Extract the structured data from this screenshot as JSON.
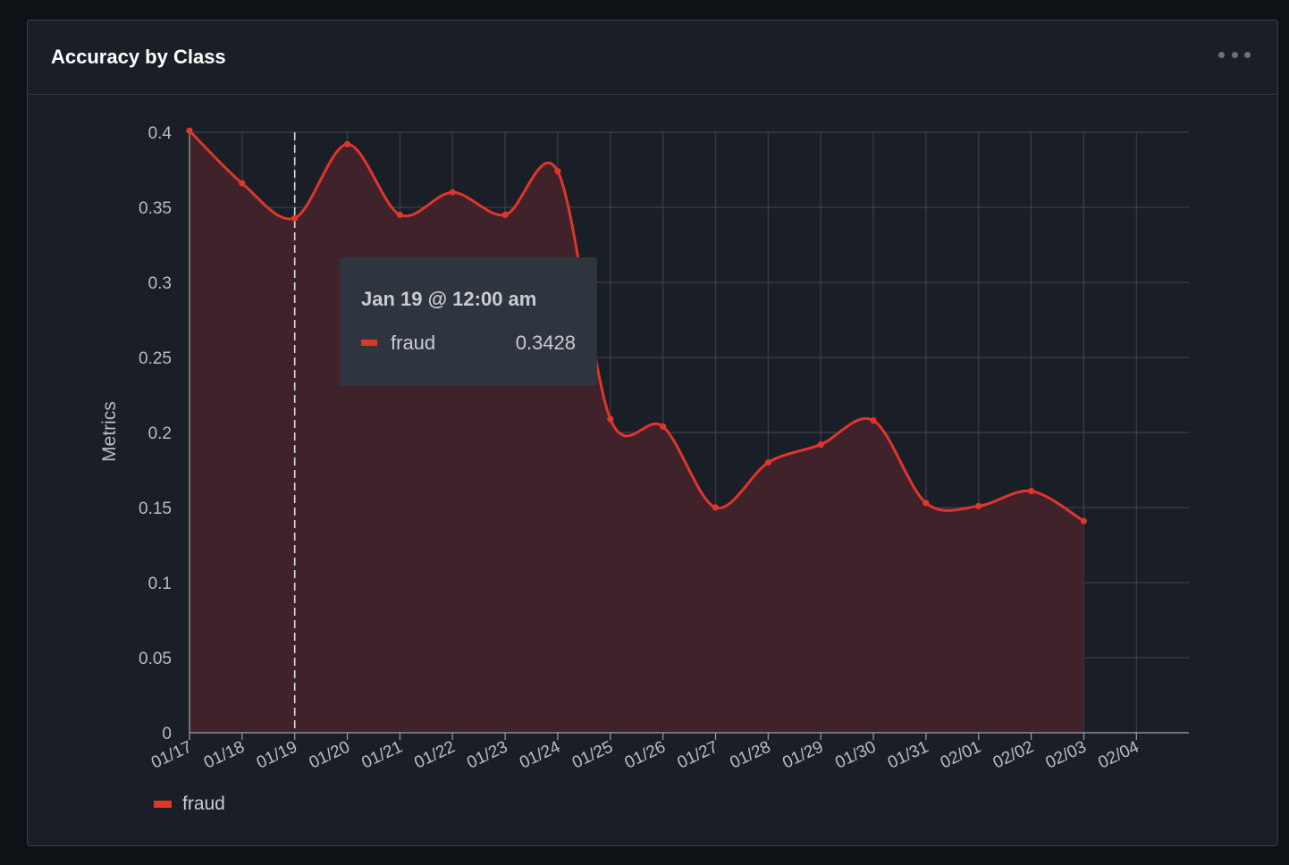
{
  "panel": {
    "title": "Accuracy by Class",
    "menu_icon": "more-horizontal-icon"
  },
  "tooltip": {
    "title": "Jan 19 @ 12:00 am",
    "series": "fraud",
    "value": "0.3428"
  },
  "legend": {
    "label": "fraud"
  },
  "colors": {
    "series": "#e0352b",
    "fill": "#40232a",
    "grid": "#3b4049",
    "hover_line": "#d8dbe0"
  },
  "chart_data": {
    "type": "area",
    "title": "Accuracy by Class",
    "xlabel": "",
    "ylabel": "Metrics",
    "x_ticks": [
      "01/17",
      "01/18",
      "01/19",
      "01/20",
      "01/21",
      "01/22",
      "01/23",
      "01/24",
      "01/25",
      "01/26",
      "01/27",
      "01/28",
      "01/29",
      "01/30",
      "01/31",
      "02/01",
      "02/02",
      "02/03",
      "02/04"
    ],
    "y_ticks": [
      "0",
      "0.05",
      "0.1",
      "0.15",
      "0.2",
      "0.25",
      "0.3",
      "0.35",
      "0.4"
    ],
    "ylim": [
      0,
      0.4
    ],
    "grid": true,
    "legend_position": "bottom-left",
    "hover_x": "01/19",
    "series": [
      {
        "name": "fraud",
        "x": [
          "01/17",
          "01/18",
          "01/19",
          "01/20",
          "01/21",
          "01/22",
          "01/23",
          "01/24",
          "01/25",
          "01/26",
          "01/27",
          "01/28",
          "01/29",
          "01/30",
          "01/31",
          "02/01",
          "02/02",
          "02/03"
        ],
        "values": [
          0.401,
          0.366,
          0.3428,
          0.392,
          0.345,
          0.36,
          0.345,
          0.374,
          0.209,
          0.204,
          0.15,
          0.18,
          0.192,
          0.208,
          0.153,
          0.151,
          0.161,
          0.141
        ]
      }
    ]
  }
}
